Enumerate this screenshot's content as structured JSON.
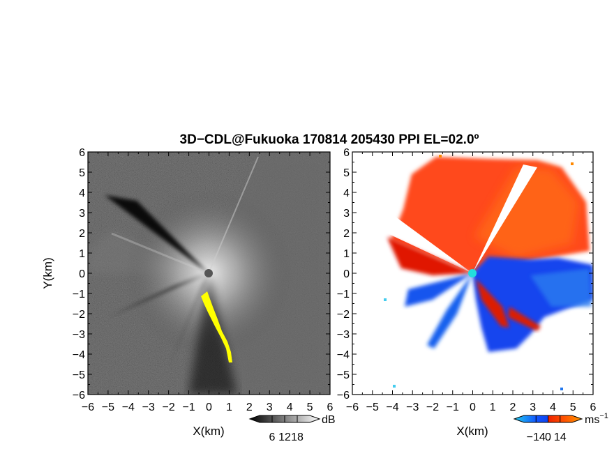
{
  "title": "3D−CDL@Fukuoka 170814 205430 PPI EL=02.0º",
  "chart_data": [
    {
      "type": "heatmap",
      "panel": "left",
      "quantity": "backscatter intensity",
      "xlabel": "X(km)",
      "ylabel": "Y(km)",
      "xlim": [
        -6,
        6
      ],
      "ylim": [
        -6,
        6
      ],
      "xticks": [
        "−6",
        "−5",
        "−4",
        "−3",
        "−2",
        "−1",
        "0",
        "1",
        "2",
        "3",
        "4",
        "5",
        "6"
      ],
      "yticks": [
        "−6",
        "−5",
        "−4",
        "−3",
        "−2",
        "−1",
        "0",
        "1",
        "2",
        "3",
        "4",
        "5",
        "6"
      ],
      "colorbar": {
        "unit": "dB",
        "ticks": [
          "6",
          "12",
          "18"
        ],
        "tick_values": [
          6,
          12,
          18
        ],
        "range": [
          0,
          24
        ],
        "colors": [
          "#000000",
          "#ffffff"
        ]
      }
    },
    {
      "type": "heatmap",
      "panel": "right",
      "quantity": "Doppler velocity",
      "xlabel": "X(km)",
      "xlim": [
        -6,
        6
      ],
      "ylim": [
        -6,
        6
      ],
      "xticks": [
        "−6",
        "−5",
        "−4",
        "−3",
        "−2",
        "−1",
        "0",
        "1",
        "2",
        "3",
        "4",
        "5",
        "6"
      ],
      "yticks": [
        "−6",
        "−5",
        "−4",
        "−3",
        "−2",
        "−1",
        "0",
        "1",
        "2",
        "3",
        "4",
        "5",
        "6"
      ],
      "colorbar": {
        "unit": "ms",
        "unit_exponent": "−1",
        "ticks": [
          "−14",
          "0",
          "14"
        ],
        "tick_values": [
          -14,
          0,
          14
        ],
        "range": [
          -28,
          28
        ],
        "colors": [
          "#22ccee",
          "#1155ff",
          "#ee2200",
          "#ff8800"
        ]
      }
    }
  ]
}
